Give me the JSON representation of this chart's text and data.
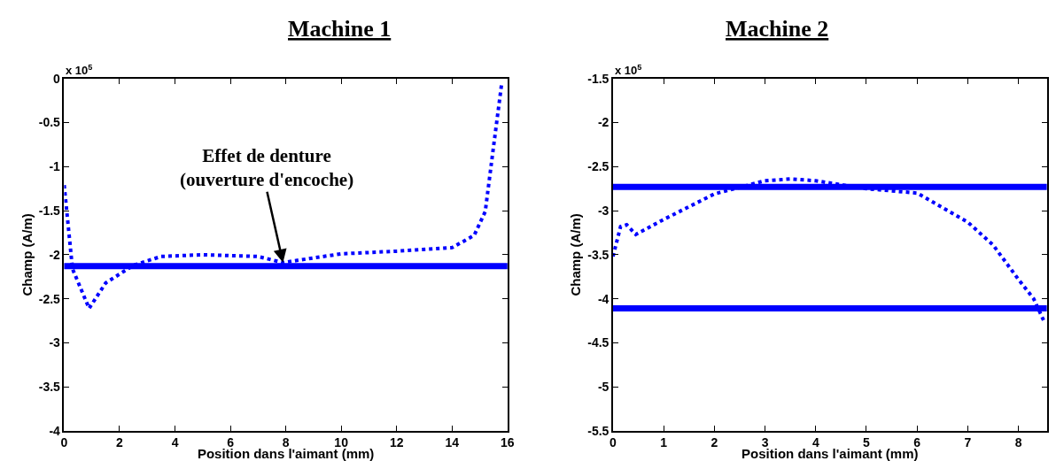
{
  "chart_data": [
    {
      "type": "line",
      "title": "Machine 1",
      "xlabel": "Position dans l'aimant (mm)",
      "ylabel": "Champ (A/m)",
      "xlim": [
        0,
        16
      ],
      "xticks": [
        0,
        2,
        4,
        6,
        8,
        10,
        12,
        14,
        16
      ],
      "ylim": [
        -4,
        0
      ],
      "yticks": [
        -4,
        -3.5,
        -3,
        -2.5,
        -2,
        -1.5,
        -1,
        -0.5,
        0
      ],
      "series": [
        {
          "color": "#0000ff",
          "line_style": "dotted",
          "x": [
            0,
            0.3,
            0.9,
            1.5,
            2.5,
            3.5,
            5,
            7,
            7.9,
            8.5,
            10,
            12,
            14,
            14.8,
            15.2,
            15.5,
            15.8
          ],
          "values": [
            -1.21,
            -2.16,
            -2.61,
            -2.32,
            -2.12,
            -2.02,
            -2.0,
            -2.02,
            -2.09,
            -2.06,
            -1.99,
            -1.96,
            -1.92,
            -1.78,
            -1.51,
            -0.77,
            -0.04
          ]
        }
      ],
      "ref_lines": [
        {
          "axis": "y",
          "value": -2.13,
          "color": "#0000ff",
          "line_style": "solid"
        }
      ],
      "annotations": [
        "x 10$^{5}$",
        {
          "text": "Effet de denture\n(ouverture d'encoche)",
          "x": 7.9,
          "y": -2.09
        }
      ]
    },
    {
      "type": "line",
      "title": "Machine 2",
      "xlabel": "Position dans l'aimant (mm)",
      "ylabel": "Champ (A/m)",
      "xlim": [
        0,
        8.56
      ],
      "xticks": [
        0,
        1,
        2,
        3,
        4,
        5,
        6,
        7,
        8
      ],
      "ylim": [
        -5.5,
        -1.5
      ],
      "yticks": [
        -5.5,
        -5,
        -4.5,
        -4,
        -3.5,
        -3,
        -2.5,
        -2,
        -1.5
      ],
      "series": [
        {
          "color": "#0000ff",
          "line_style": "dotted",
          "x": [
            0,
            0.15,
            0.27,
            0.45,
            1,
            2,
            3,
            3.5,
            4,
            5,
            6,
            7,
            7.5,
            8,
            8.3,
            8.5
          ],
          "values": [
            -3.52,
            -3.18,
            -3.16,
            -3.27,
            -3.1,
            -2.81,
            -2.66,
            -2.64,
            -2.66,
            -2.75,
            -2.8,
            -3.13,
            -3.39,
            -3.78,
            -4.0,
            -4.25
          ]
        }
      ],
      "ref_lines": [
        {
          "axis": "y",
          "value": -2.73,
          "color": "#0000ff",
          "line_style": "solid"
        },
        {
          "axis": "y",
          "value": -4.11,
          "color": "#0000ff",
          "line_style": "solid"
        }
      ],
      "annotations": [
        "x 10$^{5}$"
      ]
    }
  ]
}
